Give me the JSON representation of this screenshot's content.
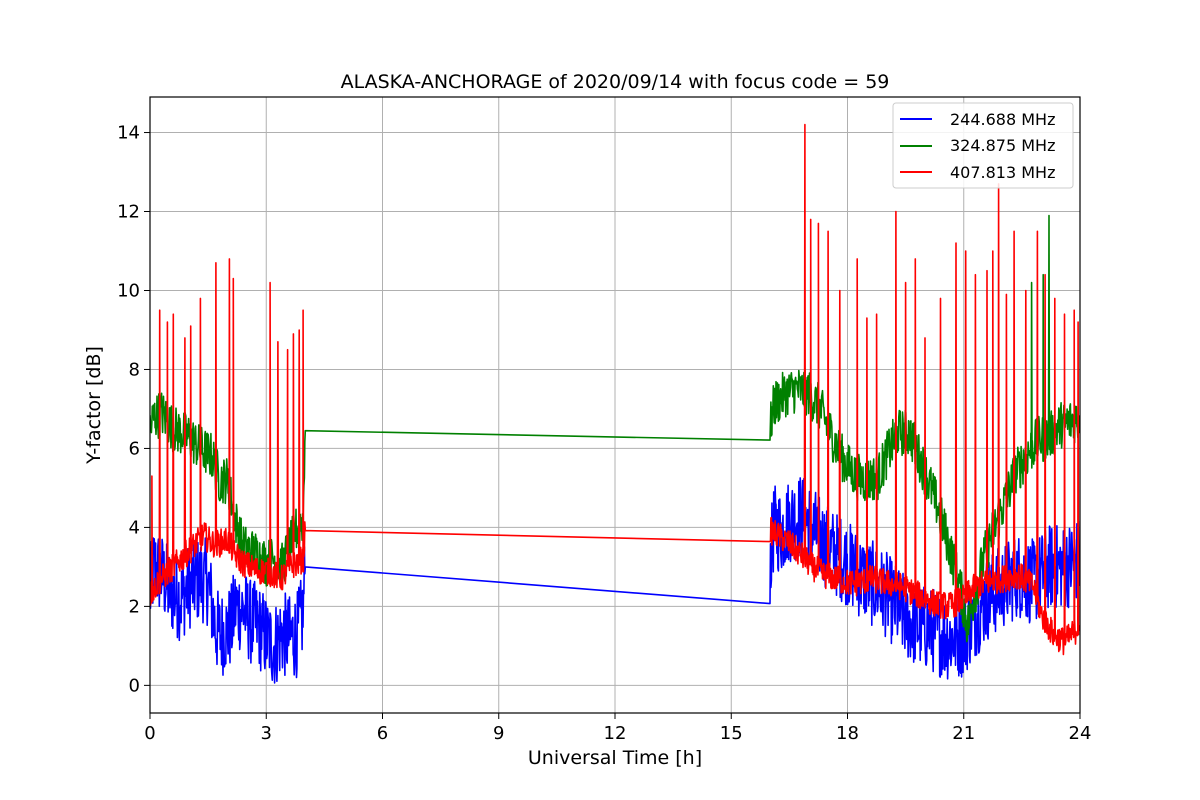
{
  "chart_data": {
    "type": "line",
    "title": "ALASKA-ANCHORAGE of 2020/09/14 with focus code = 59",
    "xlabel": "Universal Time [h]",
    "ylabel": "Y-factor [dB]",
    "xlim": [
      0,
      24
    ],
    "ylim": [
      -0.7,
      14.9
    ],
    "xticks": [
      0,
      3,
      6,
      9,
      12,
      15,
      18,
      21,
      24
    ],
    "yticks": [
      0,
      2,
      4,
      6,
      8,
      10,
      12,
      14
    ],
    "xtick_labels": [
      "0",
      "3",
      "6",
      "9",
      "12",
      "15",
      "18",
      "21",
      "24"
    ],
    "ytick_labels": [
      "0",
      "2",
      "4",
      "6",
      "8",
      "10",
      "12",
      "14"
    ],
    "grid": true,
    "legend_position": "top-right",
    "series": [
      {
        "name": "244.688 MHz",
        "color": "#0000ff",
        "x": [
          0.0,
          0.1,
          0.3,
          0.5,
          0.8,
          1.0,
          1.3,
          1.5,
          1.7,
          1.8,
          2.0,
          2.1,
          2.2,
          2.4,
          2.6,
          2.8,
          3.0,
          3.2,
          3.4,
          3.6,
          3.8,
          3.95,
          4.0,
          16.0,
          16.1,
          16.3,
          16.5,
          16.8,
          17.0,
          17.3,
          17.6,
          18.0,
          18.3,
          18.6,
          19.0,
          19.4,
          19.8,
          20.2,
          20.6,
          21.0,
          21.3,
          21.6,
          22.0,
          22.4,
          22.8,
          23.2,
          23.6,
          24.0
        ],
        "y": [
          2.3,
          3.0,
          2.8,
          2.4,
          2.2,
          2.5,
          2.7,
          2.6,
          1.4,
          1.3,
          1.4,
          1.5,
          2.0,
          1.9,
          1.6,
          1.5,
          1.2,
          1.0,
          1.3,
          1.2,
          1.3,
          1.8,
          3.0,
          3.1,
          4.0,
          3.9,
          4.2,
          4.3,
          4.1,
          3.7,
          3.4,
          3.1,
          2.8,
          2.6,
          2.3,
          1.8,
          1.5,
          1.4,
          1.2,
          1.3,
          1.8,
          2.2,
          2.5,
          2.8,
          2.6,
          3.0,
          3.0,
          3.2
        ]
      },
      {
        "name": "324.875 MHz",
        "color": "#008000",
        "x": [
          0.0,
          0.1,
          0.3,
          0.6,
          1.0,
          1.3,
          1.6,
          1.8,
          2.0,
          2.2,
          2.4,
          2.6,
          2.8,
          3.0,
          3.2,
          3.4,
          3.6,
          3.8,
          3.95,
          4.0,
          16.0,
          16.1,
          16.4,
          16.7,
          17.0,
          17.3,
          17.6,
          17.9,
          18.2,
          18.5,
          18.8,
          19.0,
          19.3,
          19.6,
          20.0,
          20.3,
          20.6,
          20.9,
          21.1,
          21.3,
          21.6,
          22.0,
          22.3,
          22.6,
          22.9,
          23.2,
          23.5,
          23.8,
          24.0
        ],
        "y": [
          6.5,
          6.8,
          6.9,
          6.5,
          6.3,
          6.0,
          5.8,
          5.2,
          5.2,
          4.2,
          3.5,
          3.4,
          3.3,
          3.1,
          3.2,
          3.0,
          3.5,
          4.0,
          4.2,
          6.45,
          6.47,
          7.1,
          7.4,
          7.5,
          7.4,
          7.0,
          6.3,
          5.7,
          5.3,
          5.2,
          5.3,
          5.8,
          6.4,
          6.4,
          5.4,
          4.6,
          3.6,
          2.5,
          1.5,
          2.4,
          3.5,
          4.5,
          5.3,
          5.8,
          6.2,
          6.3,
          6.6,
          6.7,
          6.8
        ]
      },
      {
        "name": "407.813 MHz",
        "color": "#ff0000",
        "x": [
          0.0,
          0.2,
          0.5,
          0.8,
          1.1,
          1.4,
          1.6,
          1.8,
          2.0,
          2.2,
          2.4,
          2.6,
          2.8,
          3.0,
          3.2,
          3.4,
          3.6,
          3.8,
          3.95,
          4.0,
          16.0,
          16.2,
          16.5,
          16.8,
          17.1,
          17.4,
          17.7,
          18.0,
          18.3,
          18.6,
          19.0,
          19.4,
          19.8,
          20.2,
          20.6,
          21.0,
          21.3,
          21.6,
          22.0,
          22.4,
          22.8,
          23.0,
          23.3,
          23.6,
          23.9,
          24.0
        ],
        "y": [
          2.3,
          2.6,
          2.9,
          3.2,
          3.5,
          3.8,
          3.6,
          3.6,
          3.7,
          3.3,
          3.1,
          3.0,
          2.9,
          2.9,
          2.8,
          2.7,
          3.0,
          3.1,
          3.2,
          3.92,
          3.93,
          3.8,
          3.6,
          3.3,
          3.0,
          2.8,
          2.7,
          2.6,
          2.6,
          2.7,
          2.6,
          2.5,
          2.3,
          2.1,
          2.0,
          2.2,
          2.5,
          2.6,
          2.7,
          2.8,
          2.5,
          1.8,
          1.3,
          1.1,
          1.4,
          1.6
        ]
      }
    ],
    "red_spikes": {
      "x": [
        0.05,
        0.25,
        0.45,
        0.6,
        0.9,
        1.05,
        1.3,
        1.7,
        2.05,
        2.15,
        3.1,
        3.3,
        3.55,
        3.7,
        3.85,
        3.95,
        16.9,
        17.05,
        17.25,
        17.5,
        17.8,
        18.25,
        18.5,
        18.75,
        19.25,
        19.5,
        19.75,
        20.0,
        20.4,
        20.8,
        21.05,
        21.3,
        21.6,
        21.75,
        21.9,
        22.1,
        22.3,
        22.6,
        22.9,
        23.1,
        23.35,
        23.6,
        23.85,
        23.95
      ],
      "y": [
        5.3,
        9.5,
        9.2,
        9.4,
        8.8,
        9.1,
        9.8,
        10.7,
        10.8,
        10.3,
        10.2,
        8.7,
        8.5,
        8.9,
        9.0,
        9.5,
        14.2,
        11.8,
        11.7,
        11.5,
        10.0,
        10.8,
        9.3,
        9.4,
        12.0,
        10.2,
        10.8,
        8.8,
        9.8,
        11.2,
        11.0,
        10.4,
        10.5,
        11.0,
        12.7,
        9.9,
        11.5,
        10.0,
        11.5,
        10.4,
        9.8,
        9.4,
        9.5,
        9.2
      ]
    },
    "green_spikes": {
      "x": [
        22.75,
        23.05,
        23.2
      ],
      "y": [
        10.2,
        10.4,
        11.9
      ]
    }
  }
}
